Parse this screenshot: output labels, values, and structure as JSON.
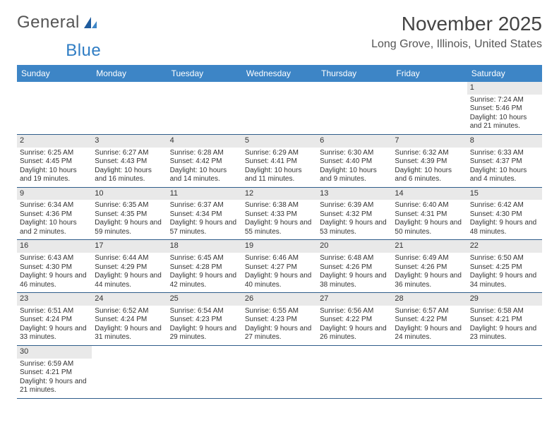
{
  "logo": {
    "text1": "General",
    "text2": "Blue"
  },
  "title": "November 2025",
  "location": "Long Grove, Illinois, United States",
  "header_bg": "#3d85c6",
  "header_fg": "#ffffff",
  "daynum_bg": "#e9e9e9",
  "border_color": "#2f5d8a",
  "weekdays": [
    "Sunday",
    "Monday",
    "Tuesday",
    "Wednesday",
    "Thursday",
    "Friday",
    "Saturday"
  ],
  "weeks": [
    [
      null,
      null,
      null,
      null,
      null,
      null,
      {
        "n": "1",
        "sr": "Sunrise: 7:24 AM",
        "ss": "Sunset: 5:46 PM",
        "dl": "Daylight: 10 hours and 21 minutes."
      }
    ],
    [
      {
        "n": "2",
        "sr": "Sunrise: 6:25 AM",
        "ss": "Sunset: 4:45 PM",
        "dl": "Daylight: 10 hours and 19 minutes."
      },
      {
        "n": "3",
        "sr": "Sunrise: 6:27 AM",
        "ss": "Sunset: 4:43 PM",
        "dl": "Daylight: 10 hours and 16 minutes."
      },
      {
        "n": "4",
        "sr": "Sunrise: 6:28 AM",
        "ss": "Sunset: 4:42 PM",
        "dl": "Daylight: 10 hours and 14 minutes."
      },
      {
        "n": "5",
        "sr": "Sunrise: 6:29 AM",
        "ss": "Sunset: 4:41 PM",
        "dl": "Daylight: 10 hours and 11 minutes."
      },
      {
        "n": "6",
        "sr": "Sunrise: 6:30 AM",
        "ss": "Sunset: 4:40 PM",
        "dl": "Daylight: 10 hours and 9 minutes."
      },
      {
        "n": "7",
        "sr": "Sunrise: 6:32 AM",
        "ss": "Sunset: 4:39 PM",
        "dl": "Daylight: 10 hours and 6 minutes."
      },
      {
        "n": "8",
        "sr": "Sunrise: 6:33 AM",
        "ss": "Sunset: 4:37 PM",
        "dl": "Daylight: 10 hours and 4 minutes."
      }
    ],
    [
      {
        "n": "9",
        "sr": "Sunrise: 6:34 AM",
        "ss": "Sunset: 4:36 PM",
        "dl": "Daylight: 10 hours and 2 minutes."
      },
      {
        "n": "10",
        "sr": "Sunrise: 6:35 AM",
        "ss": "Sunset: 4:35 PM",
        "dl": "Daylight: 9 hours and 59 minutes."
      },
      {
        "n": "11",
        "sr": "Sunrise: 6:37 AM",
        "ss": "Sunset: 4:34 PM",
        "dl": "Daylight: 9 hours and 57 minutes."
      },
      {
        "n": "12",
        "sr": "Sunrise: 6:38 AM",
        "ss": "Sunset: 4:33 PM",
        "dl": "Daylight: 9 hours and 55 minutes."
      },
      {
        "n": "13",
        "sr": "Sunrise: 6:39 AM",
        "ss": "Sunset: 4:32 PM",
        "dl": "Daylight: 9 hours and 53 minutes."
      },
      {
        "n": "14",
        "sr": "Sunrise: 6:40 AM",
        "ss": "Sunset: 4:31 PM",
        "dl": "Daylight: 9 hours and 50 minutes."
      },
      {
        "n": "15",
        "sr": "Sunrise: 6:42 AM",
        "ss": "Sunset: 4:30 PM",
        "dl": "Daylight: 9 hours and 48 minutes."
      }
    ],
    [
      {
        "n": "16",
        "sr": "Sunrise: 6:43 AM",
        "ss": "Sunset: 4:30 PM",
        "dl": "Daylight: 9 hours and 46 minutes."
      },
      {
        "n": "17",
        "sr": "Sunrise: 6:44 AM",
        "ss": "Sunset: 4:29 PM",
        "dl": "Daylight: 9 hours and 44 minutes."
      },
      {
        "n": "18",
        "sr": "Sunrise: 6:45 AM",
        "ss": "Sunset: 4:28 PM",
        "dl": "Daylight: 9 hours and 42 minutes."
      },
      {
        "n": "19",
        "sr": "Sunrise: 6:46 AM",
        "ss": "Sunset: 4:27 PM",
        "dl": "Daylight: 9 hours and 40 minutes."
      },
      {
        "n": "20",
        "sr": "Sunrise: 6:48 AM",
        "ss": "Sunset: 4:26 PM",
        "dl": "Daylight: 9 hours and 38 minutes."
      },
      {
        "n": "21",
        "sr": "Sunrise: 6:49 AM",
        "ss": "Sunset: 4:26 PM",
        "dl": "Daylight: 9 hours and 36 minutes."
      },
      {
        "n": "22",
        "sr": "Sunrise: 6:50 AM",
        "ss": "Sunset: 4:25 PM",
        "dl": "Daylight: 9 hours and 34 minutes."
      }
    ],
    [
      {
        "n": "23",
        "sr": "Sunrise: 6:51 AM",
        "ss": "Sunset: 4:24 PM",
        "dl": "Daylight: 9 hours and 33 minutes."
      },
      {
        "n": "24",
        "sr": "Sunrise: 6:52 AM",
        "ss": "Sunset: 4:24 PM",
        "dl": "Daylight: 9 hours and 31 minutes."
      },
      {
        "n": "25",
        "sr": "Sunrise: 6:54 AM",
        "ss": "Sunset: 4:23 PM",
        "dl": "Daylight: 9 hours and 29 minutes."
      },
      {
        "n": "26",
        "sr": "Sunrise: 6:55 AM",
        "ss": "Sunset: 4:23 PM",
        "dl": "Daylight: 9 hours and 27 minutes."
      },
      {
        "n": "27",
        "sr": "Sunrise: 6:56 AM",
        "ss": "Sunset: 4:22 PM",
        "dl": "Daylight: 9 hours and 26 minutes."
      },
      {
        "n": "28",
        "sr": "Sunrise: 6:57 AM",
        "ss": "Sunset: 4:22 PM",
        "dl": "Daylight: 9 hours and 24 minutes."
      },
      {
        "n": "29",
        "sr": "Sunrise: 6:58 AM",
        "ss": "Sunset: 4:21 PM",
        "dl": "Daylight: 9 hours and 23 minutes."
      }
    ],
    [
      {
        "n": "30",
        "sr": "Sunrise: 6:59 AM",
        "ss": "Sunset: 4:21 PM",
        "dl": "Daylight: 9 hours and 21 minutes."
      },
      null,
      null,
      null,
      null,
      null,
      null
    ]
  ]
}
